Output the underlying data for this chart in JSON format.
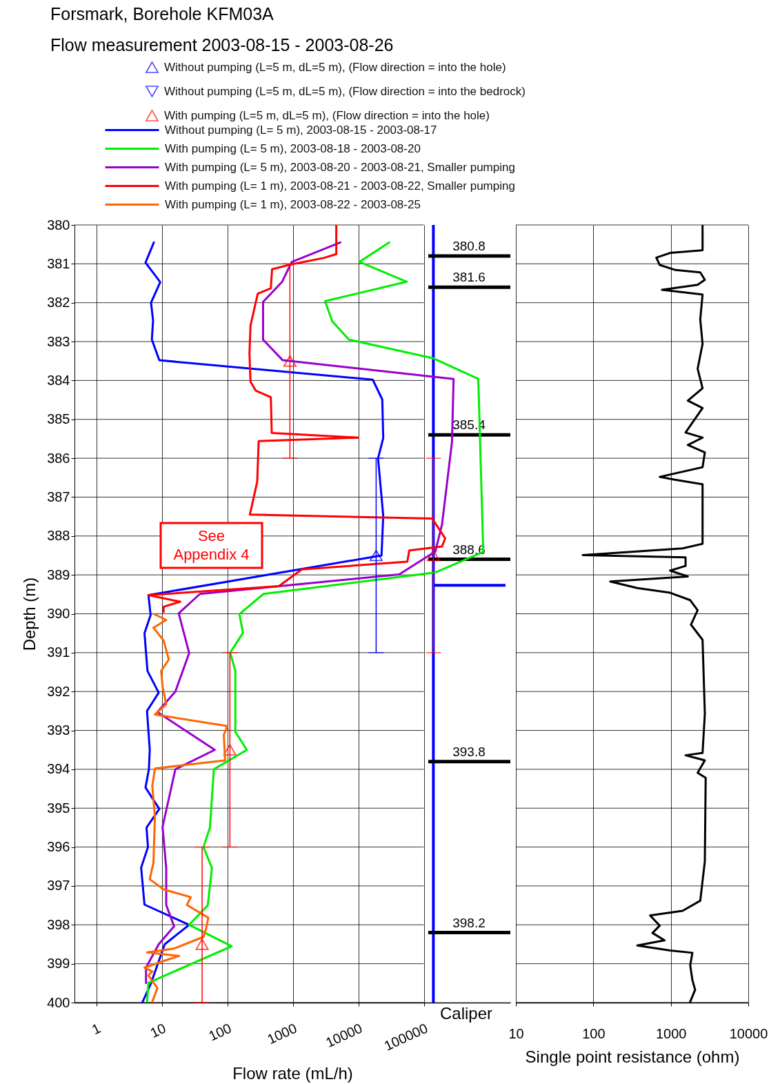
{
  "chart_data": [
    {
      "type": "line",
      "title": "Forsmark,  Borehole KFM03A",
      "subtitle": "Flow measurement  2003-08-15 - 2003-08-26",
      "xlabel": "Flow rate (mL/h)",
      "ylabel": "Depth (m)",
      "log": "x",
      "xlim": [
        0.46,
        2100000
      ],
      "xticks": [
        1,
        10,
        100,
        1000,
        10000,
        100000
      ],
      "ylim": [
        400,
        380
      ],
      "yticks": [
        380,
        381,
        382,
        383,
        384,
        385,
        386,
        387,
        388,
        389,
        390,
        391,
        392,
        393,
        394,
        395,
        396,
        397,
        398,
        399,
        400
      ],
      "grid": true,
      "legend": "top",
      "annotations": [
        "See\nAppendix 4",
        "Caliper"
      ],
      "ref_lines": [
        {
          "axis": "x",
          "value": 140000,
          "color": "#0000ff"
        },
        {
          "axis": "y",
          "value": 389.27,
          "color": "#0000ff"
        },
        {
          "axis": "y",
          "value": 380.8,
          "label": "380.8"
        },
        {
          "axis": "y",
          "value": 381.6,
          "label": "381.6"
        },
        {
          "axis": "y",
          "value": 385.4,
          "label": "385.4"
        },
        {
          "axis": "y",
          "value": 388.6,
          "label": "388.6"
        },
        {
          "axis": "y",
          "value": 393.8,
          "label": "393.8"
        },
        {
          "axis": "y",
          "value": 398.2,
          "label": "398.2"
        }
      ],
      "series": [
        {
          "name": "Without pumping (L=5 m, dL=5 m), (Flow direction = into the hole)",
          "type": "scatter",
          "marker": "triangle",
          "color": "#0000ff",
          "x": [
            18700
          ],
          "values": [
            388.5
          ],
          "errors": [
            2.5
          ]
        },
        {
          "name": "Without pumping (L=5 m, dL=5 m), (Flow direction = into the bedrock)",
          "type": "scatter",
          "marker": "triangle-down",
          "color": "#0000ff"
        },
        {
          "name": "With pumping (L=5 m, dL=5 m), (Flow direction = into the hole)",
          "type": "scatter",
          "marker": "triangle",
          "color": "#ff0000",
          "x": [
            900,
            140000,
            109,
            41
          ],
          "values": [
            383.5,
            388.5,
            393.5,
            398.5
          ],
          "errors": [
            2.5,
            2.5,
            2.5,
            [
              396,
              400
            ]
          ]
        },
        {
          "name": "Without pumping (L= 5 m), 2003-08-15 - 2003-08-17",
          "color": "#0000ff",
          "x": [
            7.5,
            5.6,
            9.4,
            6.8,
            7.3,
            7.0,
            9.1,
            16600,
            23200,
            24000,
            20000,
            24000,
            22600,
            6.2,
            6.7,
            5.4,
            6.0,
            8.9,
            5.9,
            6.5,
            6.3,
            5.6,
            9.1,
            5.8,
            6.1,
            4.8,
            5.4,
            26,
            11,
            6.8,
            5.0
          ],
          "values": [
            380.45,
            380.97,
            381.47,
            382.0,
            382.46,
            382.95,
            383.48,
            383.98,
            384.49,
            385.48,
            386.0,
            387.48,
            388.5,
            389.52,
            390.03,
            390.5,
            391.47,
            392.03,
            392.5,
            393.5,
            394.0,
            394.47,
            395.02,
            395.5,
            396.0,
            396.53,
            397.48,
            398.0,
            398.5,
            399.5,
            400.0
          ]
        },
        {
          "name": "With pumping (L= 5 m), 2003-08-18 - 2003-08-20",
          "color": "#00ee00",
          "x": [
            29700,
            10400,
            55000,
            3100,
            4000,
            7200,
            140000,
            680000,
            810000,
            148000,
            355,
            152,
            173,
            110,
            132,
            132,
            198,
            62,
            54,
            43,
            58,
            50,
            26,
            116,
            6.2,
            5.9
          ],
          "values": [
            380.45,
            380.95,
            381.46,
            381.96,
            382.48,
            382.95,
            383.43,
            383.96,
            388.41,
            388.94,
            389.49,
            390.01,
            390.49,
            391.0,
            391.47,
            393.04,
            393.5,
            394.0,
            395.5,
            396.0,
            396.54,
            397.5,
            398.0,
            398.55,
            399.49,
            400.0
          ]
        },
        {
          "name": "With pumping (L= 5 m), 2003-08-20 - 2003-08-21, Smaller pumping",
          "color": "#9900cc",
          "x": [
            5300,
            960,
            680,
            350,
            350,
            700,
            285000,
            270000,
            190000,
            150000,
            42000,
            38,
            18,
            26,
            16,
            8.5,
            64,
            16,
            10.2,
            11.6,
            11.6,
            15.3,
            8.9,
            5.7,
            5.7
          ],
          "values": [
            380.45,
            380.95,
            381.47,
            381.98,
            382.95,
            383.48,
            383.96,
            385.57,
            387.7,
            388.4,
            388.99,
            389.49,
            389.99,
            391.01,
            392.0,
            392.53,
            393.5,
            394.0,
            395.48,
            396.54,
            397.49,
            398.04,
            398.5,
            399.1,
            399.5
          ]
        },
        {
          "name": "With pumping (L= 1 m), 2003-08-21 - 2003-08-22, Smaller pumping",
          "color": "#ff0000",
          "x": [
            4600,
            4600,
            2950,
            960,
            480,
            460,
            290,
            225,
            217,
            225,
            270,
            460,
            475,
            10000,
            300,
            285,
            220,
            134000,
            212000,
            190000,
            60000,
            56000,
            1370,
            610,
            6.2,
            19,
            10.6,
            10.6
          ],
          "values": [
            380.02,
            380.75,
            380.85,
            381.01,
            381.14,
            381.63,
            381.77,
            382.59,
            383.31,
            384.03,
            384.26,
            384.43,
            385.35,
            385.47,
            385.56,
            386.6,
            387.45,
            387.55,
            388.06,
            388.27,
            388.37,
            388.66,
            388.86,
            389.29,
            389.52,
            389.69,
            389.82,
            389.95
          ]
        },
        {
          "name": "With pumping (L= 1 m), 2003-08-22 - 2003-08-25",
          "color": "#ff6600",
          "x": [
            7.4,
            11.6,
            7.4,
            10.6,
            12.7,
            9.7,
            10.2,
            11.6,
            7.8,
            100,
            88,
            92,
            7.8,
            7.1,
            7.8,
            7.4,
            6.5,
            10.6,
            27.5,
            24,
            51,
            47,
            43,
            15.3,
            5.9,
            18.3,
            10.2,
            5.4,
            7.1,
            6.2,
            8.5,
            7.1
          ],
          "values": [
            390.0,
            390.16,
            390.36,
            390.69,
            391.18,
            391.47,
            391.87,
            392.33,
            392.59,
            392.89,
            393.11,
            393.77,
            393.98,
            394.43,
            395.22,
            396.4,
            396.83,
            397.09,
            397.29,
            397.49,
            397.82,
            398.11,
            398.31,
            398.61,
            398.71,
            398.8,
            398.94,
            399.1,
            399.2,
            399.3,
            399.63,
            399.98
          ]
        }
      ]
    },
    {
      "type": "line",
      "xlabel": "Single point resistance (ohm)",
      "log": "x",
      "xlim": [
        10,
        10000
      ],
      "xticks": [
        10,
        100,
        1000,
        10000
      ],
      "ylim": [
        400,
        380
      ],
      "yticks": [
        380,
        381,
        382,
        383,
        384,
        385,
        386,
        387,
        388,
        389,
        390,
        391,
        392,
        393,
        394,
        395,
        396,
        397,
        398,
        399,
        400
      ],
      "grid": true,
      "tick_labels": "x",
      "series": [
        {
          "color": "#000000",
          "x": [
            2570,
            2570,
            980,
            650,
            720,
            1150,
            2400,
            2750,
            2220,
            770,
            2570,
            2400,
            2570,
            2220,
            2570,
            1660,
            2570,
            1550,
            2570,
            1660,
            2750,
            2570,
            720,
            1100,
            2570,
            2570,
            2570,
            1420,
            73,
            1550,
            1550,
            980,
            1660,
            165,
            370,
            980,
            1780,
            2220,
            1820,
            2570,
            2750,
            2570,
            1550,
            2750,
            2220,
            2820,
            2750,
            2400,
            1420,
            540,
            720,
            580,
            830,
            370,
            980,
            1900,
            1780,
            1900,
            2060,
            1780
          ],
          "values": [
            380.02,
            380.65,
            380.72,
            380.84,
            381.03,
            381.16,
            381.22,
            381.41,
            381.54,
            381.67,
            381.79,
            382.43,
            383.06,
            383.7,
            384.2,
            384.52,
            384.71,
            385.34,
            385.47,
            385.66,
            385.85,
            386.23,
            386.48,
            386.55,
            386.67,
            387.5,
            388.2,
            388.32,
            388.49,
            388.55,
            388.77,
            388.89,
            389.04,
            389.17,
            389.34,
            389.46,
            389.65,
            389.91,
            390.28,
            390.67,
            392.57,
            393.58,
            393.64,
            393.77,
            394.09,
            394.22,
            396.37,
            397.38,
            397.64,
            397.76,
            398.02,
            398.21,
            398.4,
            398.53,
            398.66,
            398.72,
            399.04,
            399.42,
            399.67,
            399.98
          ]
        }
      ]
    }
  ]
}
